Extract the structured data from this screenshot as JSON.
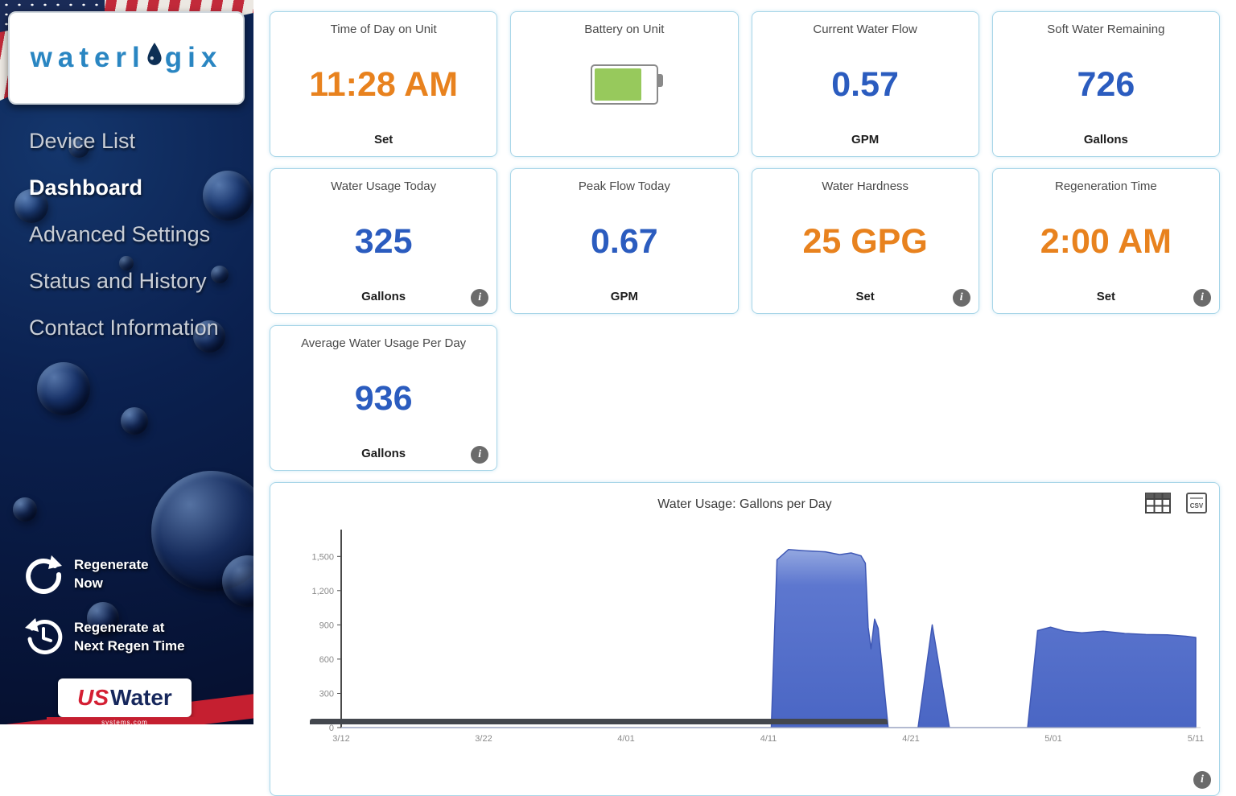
{
  "colors": {
    "accent_orange": "#e8821e",
    "value_blue": "#2b5cbf",
    "card_border": "#a8d6e8",
    "battery_green": "#97c95c",
    "sidebar_navy": "#0b2150",
    "brand_red": "#c51f30"
  },
  "icons": {
    "info_glyph": "i",
    "csv_label": "CSV"
  },
  "sidebar": {
    "logo": {
      "prefix": "waterl",
      "suffix": "gix"
    },
    "items": [
      {
        "label": "Device List",
        "state": ""
      },
      {
        "label": "Dashboard",
        "state": "active"
      },
      {
        "label": "Advanced Settings",
        "state": ""
      },
      {
        "label": "Status and History",
        "state": ""
      },
      {
        "label": "Contact Information",
        "state": ""
      }
    ],
    "regenerate_now": {
      "line1": "Regenerate",
      "line2": "Now"
    },
    "regenerate_next": {
      "line1": "Regenerate at",
      "line2": "Next Regen Time"
    },
    "footer": {
      "us": "US",
      "water": "Water",
      "systems": "systems.com"
    }
  },
  "cards": {
    "time": {
      "title": "Time of Day on Unit",
      "value": "11:28 AM",
      "value_color": "orange",
      "sub": "Set"
    },
    "battery": {
      "title": "Battery on Unit"
    },
    "flow": {
      "title": "Current Water Flow",
      "value": "0.57",
      "value_color": "blue",
      "sub": "GPM"
    },
    "soft": {
      "title": "Soft Water Remaining",
      "value": "726",
      "value_color": "blue",
      "sub": "Gallons"
    },
    "usage": {
      "title": "Water Usage Today",
      "value": "325",
      "value_color": "blue",
      "sub": "Gallons"
    },
    "peak": {
      "title": "Peak Flow Today",
      "value": "0.67",
      "value_color": "blue",
      "sub": "GPM"
    },
    "hardness": {
      "title": "Water Hardness",
      "value": "25 GPG",
      "value_color": "orange",
      "sub": "Set"
    },
    "regen": {
      "title": "Regeneration Time",
      "value": "2:00 AM",
      "value_color": "orange",
      "sub": "Set"
    },
    "avg": {
      "title": "Average Water Usage Per Day",
      "value": "936",
      "value_color": "blue",
      "sub": "Gallons"
    }
  },
  "chart_data": {
    "type": "area",
    "title": "Water Usage: Gallons per Day",
    "xlabel": "",
    "ylabel": "",
    "x_tick_labels": [
      "3/12",
      "3/22",
      "4/01",
      "4/11",
      "4/21",
      "5/01",
      "5/11"
    ],
    "x_tick_days": [
      0,
      10,
      20,
      30,
      40,
      50,
      60
    ],
    "y_ticks": [
      0,
      300,
      600,
      900,
      1200,
      1500
    ],
    "ylim": [
      0,
      1650
    ],
    "grid": false,
    "legend": false,
    "series": [
      {
        "name": "Gallons per Day",
        "points": [
          [
            0,
            0
          ],
          [
            30.2,
            0
          ],
          [
            30.6,
            1470
          ],
          [
            31.4,
            1560
          ],
          [
            32.5,
            1550
          ],
          [
            34,
            1540
          ],
          [
            35,
            1515
          ],
          [
            35.8,
            1530
          ],
          [
            36.5,
            1505
          ],
          [
            36.8,
            1440
          ],
          [
            37.0,
            880
          ],
          [
            37.2,
            690
          ],
          [
            37.45,
            950
          ],
          [
            37.7,
            870
          ],
          [
            38.4,
            0
          ],
          [
            40.5,
            0
          ],
          [
            41.5,
            900
          ],
          [
            42.7,
            0
          ],
          [
            48.2,
            0
          ],
          [
            48.9,
            850
          ],
          [
            49.8,
            880
          ],
          [
            50.8,
            845
          ],
          [
            52,
            830
          ],
          [
            53.5,
            845
          ],
          [
            55,
            825
          ],
          [
            56.5,
            815
          ],
          [
            58,
            812
          ],
          [
            59.3,
            800
          ],
          [
            60,
            790
          ]
        ]
      }
    ],
    "colors": {
      "fill_top": "#93a7e0",
      "fill_mid": "#5d77cf",
      "fill_bottom": "#4a66c4",
      "stroke": "#3f58b5"
    }
  }
}
